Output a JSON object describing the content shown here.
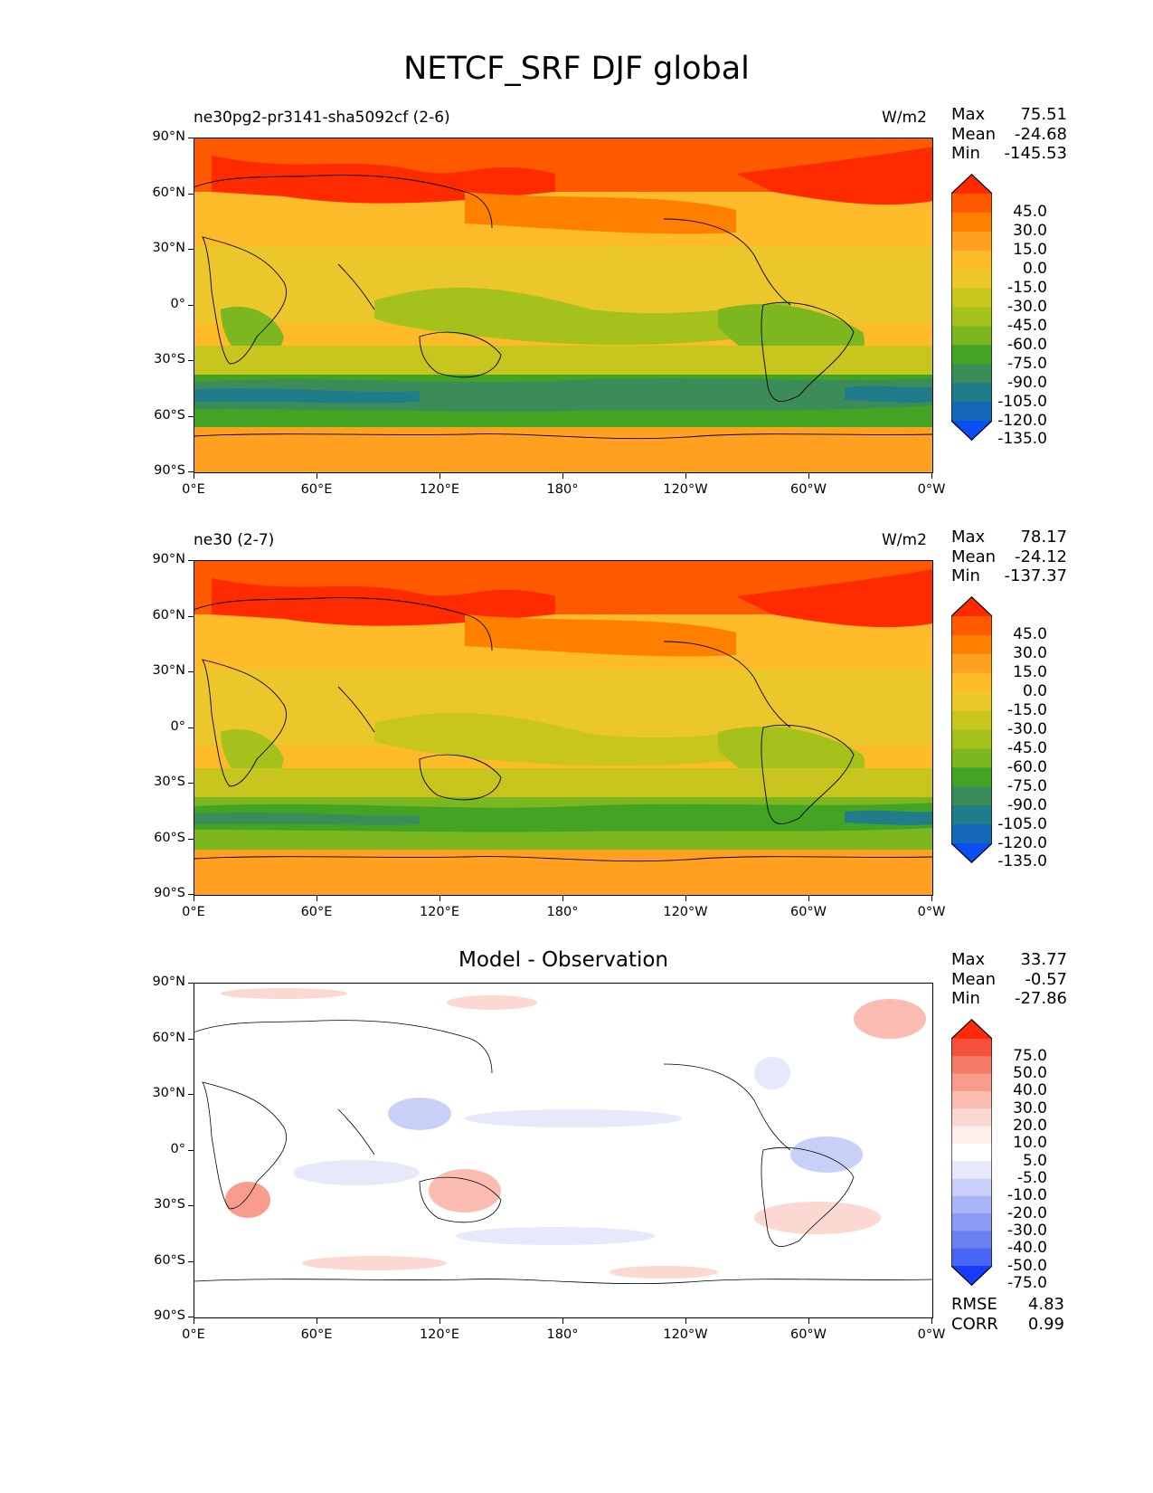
{
  "title": "NETCF_SRF DJF global",
  "x_ticks": [
    "0°E",
    "60°E",
    "120°E",
    "180°",
    "120°W",
    "60°W",
    "0°W"
  ],
  "y_ticks": [
    "90°N",
    "60°N",
    "30°N",
    "0°",
    "30°S",
    "60°S",
    "90°S"
  ],
  "panels": [
    {
      "left_label": "ne30pg2-pr3141-sha5092cf (2-6)",
      "right_label": "W/m2",
      "center_title": "",
      "stats": [
        {
          "key": "Max",
          "value": "75.51"
        },
        {
          "key": "Mean",
          "value": "-24.68"
        },
        {
          "key": "Min",
          "value": "-145.53"
        }
      ],
      "colorbar_labels": [
        "45.0",
        "30.0",
        "15.0",
        "0.0",
        "-15.0",
        "-30.0",
        "-45.0",
        "-60.0",
        "-75.0",
        "-90.0",
        "-105.0",
        "-120.0",
        "-135.0"
      ],
      "colorbar_colors": [
        "#ff2a00",
        "#ff5a00",
        "#ff8000",
        "#ffa020",
        "#fdbb2a",
        "#ecc72c",
        "#c9c51f",
        "#a5c21c",
        "#7db71f",
        "#43a323",
        "#3b8c59",
        "#207c8a",
        "#1567b7",
        "#0b4df5"
      ]
    },
    {
      "left_label": "ne30 (2-7)",
      "right_label": "W/m2",
      "center_title": "",
      "stats": [
        {
          "key": "Max",
          "value": "78.17"
        },
        {
          "key": "Mean",
          "value": "-24.12"
        },
        {
          "key": "Min",
          "value": "-137.37"
        }
      ],
      "colorbar_labels": [
        "45.0",
        "30.0",
        "15.0",
        "0.0",
        "-15.0",
        "-30.0",
        "-45.0",
        "-60.0",
        "-75.0",
        "-90.0",
        "-105.0",
        "-120.0",
        "-135.0"
      ],
      "colorbar_colors": [
        "#ff2a00",
        "#ff5a00",
        "#ff8000",
        "#ffa020",
        "#fdbb2a",
        "#ecc72c",
        "#c9c51f",
        "#a5c21c",
        "#7db71f",
        "#43a323",
        "#3b8c59",
        "#207c8a",
        "#1567b7",
        "#0b4df5"
      ]
    },
    {
      "left_label": "",
      "right_label": "",
      "center_title": "Model - Observation",
      "stats": [
        {
          "key": "Max",
          "value": "33.77"
        },
        {
          "key": "Mean",
          "value": "-0.57"
        },
        {
          "key": "Min",
          "value": "-27.86"
        }
      ],
      "extra_stats": [
        {
          "key": "RMSE",
          "value": "4.83"
        },
        {
          "key": "CORR",
          "value": "0.99"
        }
      ],
      "colorbar_labels": [
        "75.0",
        "50.0",
        "40.0",
        "30.0",
        "20.0",
        "10.0",
        "5.0",
        "-5.0",
        "-10.0",
        "-20.0",
        "-30.0",
        "-40.0",
        "-50.0",
        "-75.0"
      ],
      "colorbar_colors": [
        "#ff2a0a",
        "#f5513a",
        "#f57a68",
        "#f89c8e",
        "#fbbcb2",
        "#fcd8d2",
        "#feeeec",
        "#ffffff",
        "#e6e9fb",
        "#c9d0f8",
        "#a9b5f4",
        "#8a9bf2",
        "#6a80f3",
        "#4a66f5",
        "#1a3cf8"
      ]
    }
  ],
  "colors": {
    "ocean_cold_band": "#3b8c59",
    "ocean_deep_band": "#207c8a",
    "warm_high_lat": "#ff5a00",
    "coastline": "#000000"
  }
}
